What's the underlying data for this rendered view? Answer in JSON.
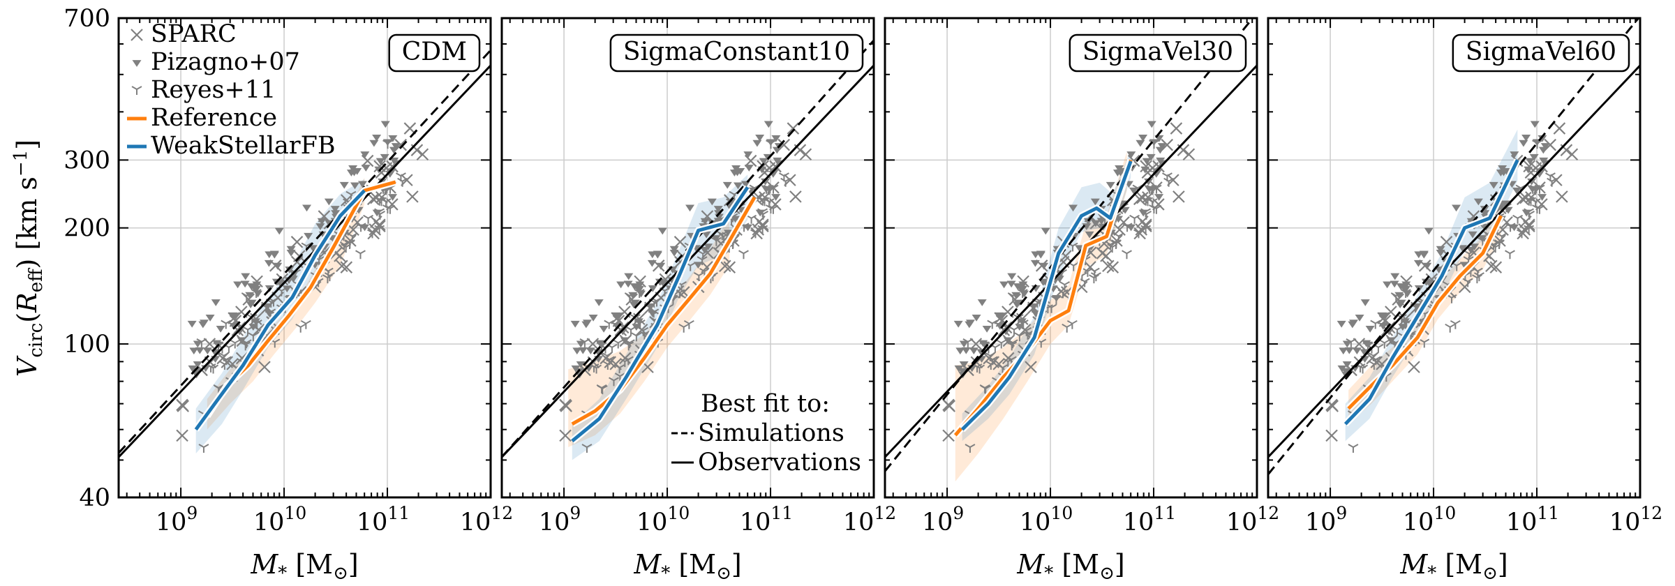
{
  "chart_data": {
    "type": "scatter",
    "ylabel": "V_circ(R_eff) [km s^-1]",
    "xlabel": "M_* [M_⊙]",
    "x_scale": "log",
    "y_scale": "log",
    "xlim": [
      250000000.0,
      1000000000000.0
    ],
    "ylim": [
      40,
      700
    ],
    "x_ticks": [
      {
        "v": 1000000000.0,
        "m": "10",
        "e": "9"
      },
      {
        "v": 10000000000.0,
        "m": "10",
        "e": "10"
      },
      {
        "v": 100000000000.0,
        "m": "10",
        "e": "11"
      },
      {
        "v": 1000000000000.0,
        "m": "10",
        "e": "12"
      }
    ],
    "y_ticks": [
      {
        "v": 40,
        "label": "40"
      },
      {
        "v": 100,
        "label": "100"
      },
      {
        "v": 200,
        "label": "200"
      },
      {
        "v": 300,
        "label": "300"
      },
      {
        "v": 700,
        "label": "700"
      }
    ],
    "grid": true,
    "legend": {
      "placement": "top-left of first panel",
      "entries": [
        {
          "label": "SPARC",
          "marker": "x",
          "color": "#808080"
        },
        {
          "label": "Pizagno+07",
          "marker": "triangle-down",
          "color": "#808080"
        },
        {
          "label": "Reyes+11",
          "marker": "tri-down",
          "color": "#808080"
        },
        {
          "label": "Reference",
          "marker": "line",
          "color": "#ff7f0e"
        },
        {
          "label": "WeakStellarFB",
          "marker": "line",
          "color": "#1f77b4"
        }
      ]
    },
    "fit_legend": {
      "title": "Best fit to:",
      "entries": [
        {
          "label": "Simulations",
          "style": "dashed"
        },
        {
          "label": "Observations",
          "style": "solid"
        }
      ]
    },
    "observations_fit": {
      "slope": 0.282,
      "v_at_1e10": 144
    },
    "panels": [
      {
        "name": "CDM",
        "sim_fit": {
          "slope": 0.29,
          "v_at_1e10": 152
        },
        "series": [
          {
            "name": "Reference",
            "color": "#ff7f0e",
            "x": [
              1800000000.0,
              2800000000.0,
              4500000000.0,
              7000000000.0,
              11000000000.0,
              18000000000.0,
              30000000000.0,
              60000000000.0,
              120000000000.0
            ],
            "y": [
              65,
              78,
              88,
              102,
              118,
              140,
              178,
              250,
              263
            ]
          },
          {
            "name": "WeakStellarFB",
            "color": "#1f77b4",
            "x": [
              1400000000.0,
              2300000000.0,
              4000000000.0,
              7000000000.0,
              12000000000.0,
              20000000000.0,
              35000000000.0,
              60000000000.0
            ],
            "y": [
              60,
              72,
              88,
              112,
              132,
              170,
              215,
              250
            ]
          }
        ],
        "bands": [
          {
            "color": "#ff7f0e",
            "x": [
              1800000000.0,
              3000000000.0,
              5000000000.0,
              8000000000.0,
              13000000000.0,
              20000000000.0,
              35000000000.0,
              60000000000.0
            ],
            "lo": [
              60,
              70,
              80,
              94,
              110,
              128,
              160,
              230
            ],
            "hi": [
              72,
              86,
              98,
              112,
              128,
              156,
              200,
              270
            ]
          },
          {
            "color": "#1f77b4",
            "x": [
              1400000000.0,
              2500000000.0,
              4000000000.0,
              7000000000.0,
              12000000000.0,
              20000000000.0,
              35000000000.0,
              60000000000.0
            ],
            "lo": [
              52,
              62,
              76,
              98,
              116,
              150,
              195,
              235
            ],
            "hi": [
              68,
              84,
              104,
              132,
              158,
              205,
              245,
              268
            ]
          }
        ]
      },
      {
        "name": "SigmaConstant10",
        "sim_fit": {
          "slope": 0.3,
          "v_at_1e10": 154
        },
        "series": [
          {
            "name": "Reference",
            "color": "#ff7f0e",
            "x": [
              1200000000.0,
              2000000000.0,
              3500000000.0,
              6000000000.0,
              10000000000.0,
              16000000000.0,
              26000000000.0,
              40000000000.0,
              70000000000.0
            ],
            "y": [
              62,
              67,
              76,
              92,
              112,
              130,
              152,
              185,
              240
            ]
          },
          {
            "name": "WeakStellarFB",
            "color": "#1f77b4",
            "x": [
              1200000000.0,
              2200000000.0,
              4000000000.0,
              8000000000.0,
              13000000000.0,
              20000000000.0,
              35000000000.0,
              60000000000.0
            ],
            "y": [
              56,
              64,
              82,
              112,
              150,
              197,
              205,
              255
            ]
          }
        ],
        "bands": [
          {
            "color": "#ff7f0e",
            "x": [
              1100000000.0,
              2000000000.0,
              3500000000.0,
              6000000000.0,
              10000000000.0,
              16000000000.0,
              26000000000.0,
              40000000000.0
            ],
            "lo": [
              54,
              58,
              66,
              80,
              98,
              114,
              134,
              160
            ],
            "hi": [
              86,
              90,
              96,
              106,
              126,
              148,
              176,
              214
            ]
          },
          {
            "color": "#1f77b4",
            "x": [
              1200000000.0,
              2200000000.0,
              4000000000.0,
              8000000000.0,
              13000000000.0,
              20000000000.0,
              35000000000.0,
              60000000000.0
            ],
            "lo": [
              50,
              56,
              72,
              98,
              132,
              160,
              170,
              210
            ],
            "hi": [
              62,
              72,
              94,
              128,
              175,
              232,
              240,
              275
            ]
          }
        ]
      },
      {
        "name": "SigmaVel30",
        "sim_fit": {
          "slope": 0.33,
          "v_at_1e10": 158
        },
        "series": [
          {
            "name": "Reference",
            "color": "#ff7f0e",
            "x": [
              1200000000.0,
              2000000000.0,
              3500000000.0,
              6000000000.0,
              10000000000.0,
              15000000000.0,
              22000000000.0,
              35000000000.0,
              60000000000.0
            ],
            "y": [
              58,
              68,
              82,
              96,
              115,
              122,
              180,
              190,
              300
            ]
          },
          {
            "name": "WeakStellarFB",
            "color": "#1f77b4",
            "x": [
              1400000000.0,
              2500000000.0,
              4000000000.0,
              7000000000.0,
              12000000000.0,
              20000000000.0,
              28000000000.0,
              38000000000.0,
              60000000000.0
            ],
            "y": [
              60,
              70,
              82,
              104,
              172,
              215,
              225,
              212,
              298
            ]
          }
        ],
        "bands": [
          {
            "color": "#ff7f0e",
            "x": [
              1200000000.0,
              2000000000.0,
              3500000000.0,
              6000000000.0,
              10000000000.0,
              15000000000.0,
              22000000000.0,
              35000000000.0,
              55000000000.0
            ],
            "lo": [
              44,
              52,
              64,
              80,
              100,
              112,
              158,
              170,
              250
            ],
            "hi": [
              88,
              90,
              98,
              110,
              130,
              142,
              205,
              215,
              315
            ]
          },
          {
            "color": "#1f77b4",
            "x": [
              1400000000.0,
              2500000000.0,
              4000000000.0,
              7000000000.0,
              12000000000.0,
              20000000000.0,
              30000000000.0,
              40000000000.0,
              60000000000.0
            ],
            "lo": [
              56,
              64,
              74,
              94,
              150,
              195,
              200,
              192,
              270
            ]
          },
          {
            "color": "#1f77b4",
            "x": [
              1400000000.0,
              2500000000.0,
              4000000000.0,
              7000000000.0,
              12000000000.0,
              20000000000.0,
              30000000000.0,
              40000000000.0,
              60000000000.0
            ],
            "lo": [
              56,
              64,
              74,
              94,
              150,
              195,
              200,
              192,
              270
            ],
            "hi": [
              66,
              78,
              92,
              118,
              200,
              255,
              262,
              245,
              318
            ]
          }
        ]
      },
      {
        "name": "SigmaVel60",
        "sim_fit": {
          "slope": 0.33,
          "v_at_1e10": 155
        },
        "series": [
          {
            "name": "Reference",
            "color": "#ff7f0e",
            "x": [
              1500000000.0,
              2500000000.0,
              4000000000.0,
              7000000000.0,
              11000000000.0,
              18000000000.0,
              30000000000.0,
              45000000000.0
            ],
            "y": [
              68,
              78,
              88,
              104,
              128,
              150,
              172,
              215
            ]
          },
          {
            "name": "WeakStellarFB",
            "color": "#1f77b4",
            "x": [
              1400000000.0,
              2400000000.0,
              4000000000.0,
              7000000000.0,
              12000000000.0,
              20000000000.0,
              35000000000.0,
              65000000000.0
            ],
            "y": [
              62,
              72,
              92,
              118,
              150,
              200,
              212,
              300
            ]
          }
        ],
        "bands": [
          {
            "color": "#ff7f0e",
            "x": [
              1500000000.0,
              2500000000.0,
              4000000000.0,
              7000000000.0,
              11000000000.0,
              18000000000.0,
              30000000000.0,
              45000000000.0
            ],
            "lo": [
              62,
              70,
              80,
              94,
              116,
              136,
              156,
              190
            ],
            "hi": [
              76,
              88,
              98,
              116,
              142,
              166,
              190,
              240
            ]
          },
          {
            "color": "#1f77b4",
            "x": [
              1400000000.0,
              2400000000.0,
              4000000000.0,
              7000000000.0,
              12000000000.0,
              20000000000.0,
              35000000000.0,
              65000000000.0
            ],
            "lo": [
              56,
              64,
              82,
              104,
              132,
              175,
              188,
              265
            ],
            "hi": [
              70,
              82,
              104,
              134,
              172,
              240,
              262,
              360
            ]
          }
        ]
      }
    ]
  }
}
